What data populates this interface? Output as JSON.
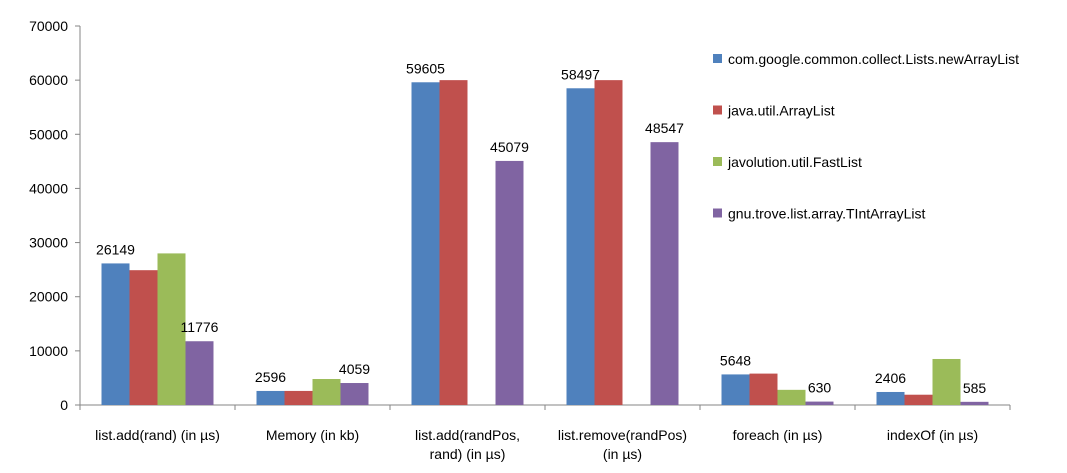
{
  "chart_data": {
    "type": "bar",
    "title": "",
    "xlabel": "",
    "ylabel": "",
    "ylim": [
      0,
      70000
    ],
    "yticks": [
      0,
      10000,
      20000,
      30000,
      40000,
      50000,
      60000,
      70000
    ],
    "ytick_labels": [
      "0",
      "10000",
      "20000",
      "30000",
      "40000",
      "50000",
      "60000",
      "70000"
    ],
    "grid": false,
    "legend_position": "right",
    "categories": [
      [
        "list.add(rand) (in µs)"
      ],
      [
        "Memory (in kb)"
      ],
      [
        "list.add(randPos,",
        "rand) (in µs)"
      ],
      [
        "list.remove(randPos)",
        "(in µs)"
      ],
      [
        "foreach (in µs)"
      ],
      [
        "indexOf (in µs)"
      ]
    ],
    "series": [
      {
        "name": "com.google.common.collect.Lists.newArrayList",
        "color": "#4F81BD",
        "values": [
          26149,
          2596,
          59605,
          58497,
          5648,
          2406
        ],
        "labels": [
          "26149",
          "2596",
          "59605",
          "58497",
          "5648",
          "2406"
        ]
      },
      {
        "name": "java.util.ArrayList",
        "color": "#C0504D",
        "values": [
          24900,
          2600,
          60000,
          60000,
          5800,
          1900
        ],
        "labels": [
          "",
          "",
          "",
          "",
          "",
          ""
        ]
      },
      {
        "name": "javolution.util.FastList",
        "color": "#9BBB59",
        "values": [
          28000,
          4800,
          0,
          0,
          2800,
          8500
        ],
        "labels": [
          "",
          "",
          "",
          "",
          "",
          ""
        ]
      },
      {
        "name": "gnu.trove.list.array.TIntArrayList",
        "color": "#8064A2",
        "values": [
          11776,
          4059,
          45079,
          48547,
          630,
          585
        ],
        "labels": [
          "11776",
          "4059",
          "45079",
          "48547",
          "630",
          "585"
        ]
      }
    ]
  }
}
